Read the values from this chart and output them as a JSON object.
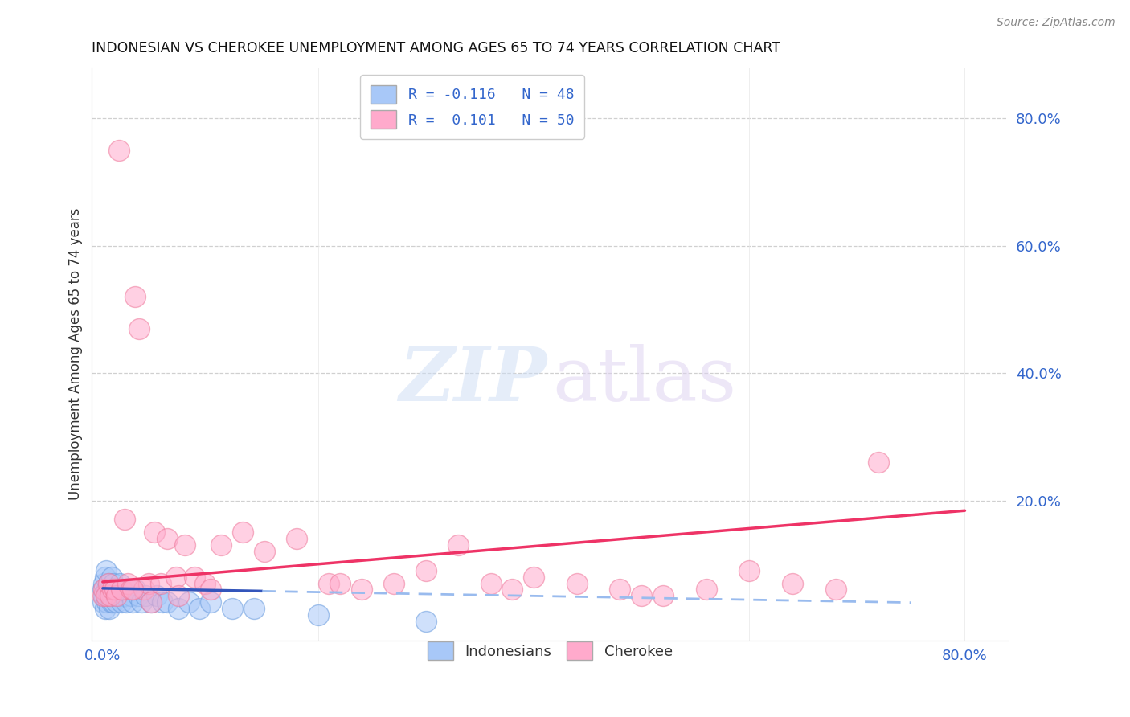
{
  "title": "INDONESIAN VS CHEROKEE UNEMPLOYMENT AMONG AGES 65 TO 74 YEARS CORRELATION CHART",
  "source": "Source: ZipAtlas.com",
  "ylabel": "Unemployment Among Ages 65 to 74 years",
  "xlim": [
    -0.01,
    0.84
  ],
  "ylim": [
    -0.02,
    0.88
  ],
  "xtick_positions": [
    0.0,
    0.2,
    0.4,
    0.6,
    0.8
  ],
  "xticklabels": [
    "0.0%",
    "",
    "",
    "",
    "80.0%"
  ],
  "ytick_right_positions": [
    0.2,
    0.4,
    0.6,
    0.8
  ],
  "ytick_right_labels": [
    "20.0%",
    "40.0%",
    "60.0%",
    "80.0%"
  ],
  "indonesian_color_fill": "#a8c8f8",
  "indonesian_color_edge": "#6699dd",
  "cherokee_color_fill": "#ffaacc",
  "cherokee_color_edge": "#ee7799",
  "indonesian_line_solid_color": "#3355bb",
  "indonesian_line_dashed_color": "#99bbee",
  "cherokee_line_color": "#ee3366",
  "grid_color": "#d0d0d0",
  "background_color": "#ffffff",
  "indonesian_slope": -0.03,
  "indonesian_intercept": 0.062,
  "indonesian_solid_xend": 0.148,
  "indonesian_dashed_xend": 0.75,
  "cherokee_slope": 0.14,
  "cherokee_intercept": 0.072,
  "cherokee_line_xend": 0.8,
  "indonesian_x": [
    0.0,
    0.0,
    0.001,
    0.001,
    0.002,
    0.002,
    0.003,
    0.003,
    0.004,
    0.004,
    0.005,
    0.005,
    0.006,
    0.007,
    0.008,
    0.008,
    0.009,
    0.01,
    0.01,
    0.011,
    0.012,
    0.013,
    0.014,
    0.015,
    0.016,
    0.017,
    0.018,
    0.02,
    0.022,
    0.024,
    0.026,
    0.028,
    0.03,
    0.033,
    0.036,
    0.04,
    0.045,
    0.05,
    0.055,
    0.06,
    0.07,
    0.08,
    0.09,
    0.1,
    0.12,
    0.14,
    0.2,
    0.3
  ],
  "indonesian_y": [
    0.04,
    0.06,
    0.05,
    0.07,
    0.03,
    0.08,
    0.05,
    0.09,
    0.04,
    0.06,
    0.05,
    0.07,
    0.03,
    0.06,
    0.04,
    0.08,
    0.05,
    0.04,
    0.07,
    0.06,
    0.05,
    0.04,
    0.06,
    0.05,
    0.07,
    0.04,
    0.06,
    0.05,
    0.04,
    0.06,
    0.05,
    0.04,
    0.06,
    0.05,
    0.04,
    0.05,
    0.04,
    0.05,
    0.04,
    0.04,
    0.03,
    0.04,
    0.03,
    0.04,
    0.03,
    0.03,
    0.02,
    0.01
  ],
  "cherokee_x": [
    0.0,
    0.001,
    0.003,
    0.005,
    0.007,
    0.009,
    0.011,
    0.013,
    0.015,
    0.017,
    0.02,
    0.023,
    0.026,
    0.03,
    0.034,
    0.038,
    0.043,
    0.048,
    0.054,
    0.06,
    0.068,
    0.076,
    0.085,
    0.095,
    0.11,
    0.13,
    0.15,
    0.18,
    0.21,
    0.24,
    0.27,
    0.3,
    0.33,
    0.36,
    0.4,
    0.44,
    0.48,
    0.52,
    0.56,
    0.6,
    0.64,
    0.68,
    0.72,
    0.5,
    0.38,
    0.22,
    0.1,
    0.07,
    0.045,
    0.028
  ],
  "cherokee_y": [
    0.05,
    0.06,
    0.05,
    0.07,
    0.05,
    0.06,
    0.06,
    0.05,
    0.75,
    0.06,
    0.17,
    0.07,
    0.06,
    0.52,
    0.47,
    0.06,
    0.07,
    0.15,
    0.07,
    0.14,
    0.08,
    0.13,
    0.08,
    0.07,
    0.13,
    0.15,
    0.12,
    0.14,
    0.07,
    0.06,
    0.07,
    0.09,
    0.13,
    0.07,
    0.08,
    0.07,
    0.06,
    0.05,
    0.06,
    0.09,
    0.07,
    0.06,
    0.26,
    0.05,
    0.06,
    0.07,
    0.06,
    0.05,
    0.04,
    0.06
  ]
}
